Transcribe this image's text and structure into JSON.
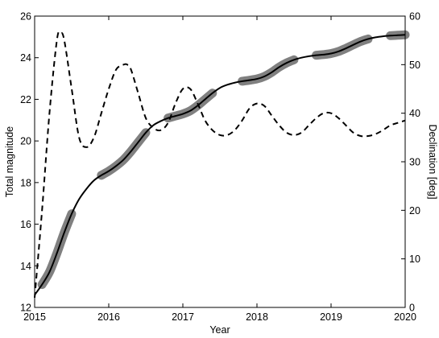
{
  "chart_data": {
    "type": "line",
    "xlabel": "Year",
    "ylabel": "Total magnitude",
    "y2label": "Declination [deg]",
    "xlim": [
      2015,
      2020
    ],
    "ylim": [
      12,
      26
    ],
    "y2lim": [
      0,
      60
    ],
    "xticks": [
      "2015",
      "2016",
      "2017",
      "2018",
      "2019",
      "2020"
    ],
    "yticks": [
      "12",
      "14",
      "16",
      "18",
      "20",
      "22",
      "24",
      "26"
    ],
    "y2ticks": [
      "0",
      "10",
      "20",
      "30",
      "40",
      "50",
      "60"
    ],
    "grid": false,
    "legend": "none",
    "series": [
      {
        "style": "solid",
        "color": "#000000",
        "axis": "left",
        "x": [
          2015.0,
          2015.1,
          2015.2,
          2015.3,
          2015.4,
          2015.5,
          2015.6,
          2015.7,
          2015.8,
          2015.9,
          2016.0,
          2016.1,
          2016.2,
          2016.3,
          2016.4,
          2016.5,
          2016.6,
          2016.7,
          2016.8,
          2016.9,
          2017.0,
          2017.1,
          2017.2,
          2017.3,
          2017.4,
          2017.5,
          2017.6,
          2017.7,
          2017.8,
          2017.9,
          2018.0,
          2018.1,
          2018.2,
          2018.3,
          2018.4,
          2018.5,
          2018.6,
          2018.7,
          2018.8,
          2018.9,
          2019.0,
          2019.1,
          2019.2,
          2019.3,
          2019.4,
          2019.5,
          2019.6,
          2019.7,
          2019.8,
          2019.9,
          2020.0
        ],
        "y": [
          12.6,
          13.1,
          13.7,
          14.6,
          15.6,
          16.5,
          17.2,
          17.7,
          18.1,
          18.35,
          18.55,
          18.8,
          19.1,
          19.5,
          19.95,
          20.4,
          20.75,
          20.95,
          21.1,
          21.2,
          21.3,
          21.45,
          21.7,
          22.0,
          22.3,
          22.55,
          22.7,
          22.8,
          22.87,
          22.92,
          22.98,
          23.1,
          23.3,
          23.55,
          23.75,
          23.9,
          24.0,
          24.07,
          24.12,
          24.15,
          24.2,
          24.3,
          24.45,
          24.62,
          24.78,
          24.9,
          24.98,
          25.03,
          25.06,
          25.08,
          25.1
        ]
      },
      {
        "style": "dashed",
        "color": "#000000",
        "axis": "right",
        "x": [
          2015.0,
          2015.1,
          2015.2,
          2015.3,
          2015.35,
          2015.4,
          2015.5,
          2015.6,
          2015.7,
          2015.8,
          2015.9,
          2016.0,
          2016.1,
          2016.2,
          2016.25,
          2016.3,
          2016.4,
          2016.5,
          2016.6,
          2016.7,
          2016.8,
          2016.9,
          2017.0,
          2017.1,
          2017.2,
          2017.3,
          2017.4,
          2017.5,
          2017.6,
          2017.7,
          2017.8,
          2017.9,
          2018.0,
          2018.1,
          2018.2,
          2018.3,
          2018.4,
          2018.5,
          2018.6,
          2018.7,
          2018.8,
          2018.9,
          2019.0,
          2019.1,
          2019.2,
          2019.3,
          2019.4,
          2019.5,
          2019.6,
          2019.7,
          2019.8,
          2019.9,
          2020.0
        ],
        "y": [
          2,
          20,
          40,
          55,
          56.5,
          55,
          45,
          35,
          33,
          35,
          40,
          45,
          49,
          50,
          50,
          49,
          44,
          39,
          37,
          36.5,
          38,
          42,
          45,
          45,
          42,
          38.5,
          36.5,
          35.5,
          35.5,
          36.5,
          38.5,
          41,
          42,
          41.5,
          39.5,
          37.5,
          36,
          35.5,
          36,
          37.5,
          39,
          40,
          40,
          39,
          37.5,
          36,
          35.3,
          35.3,
          35.7,
          36.5,
          37.5,
          38,
          38.5
        ]
      },
      {
        "style": "thick-segments",
        "color": "#808080",
        "axis": "left",
        "segments": [
          {
            "x": [
              2015.1,
              2015.2,
              2015.3,
              2015.4,
              2015.5
            ]
          },
          {
            "x": [
              2015.9,
              2016.0,
              2016.1,
              2016.2,
              2016.3,
              2016.4,
              2016.5
            ]
          },
          {
            "x": [
              2016.8,
              2016.9,
              2017.0,
              2017.1,
              2017.2,
              2017.3,
              2017.4
            ]
          },
          {
            "x": [
              2017.8,
              2017.9,
              2018.0,
              2018.1,
              2018.2,
              2018.3,
              2018.4,
              2018.5
            ]
          },
          {
            "x": [
              2018.8,
              2018.9,
              2019.0,
              2019.1,
              2019.2,
              2019.3,
              2019.4,
              2019.5
            ]
          },
          {
            "x": [
              2019.8,
              2019.9,
              2020.0
            ]
          }
        ]
      }
    ]
  }
}
